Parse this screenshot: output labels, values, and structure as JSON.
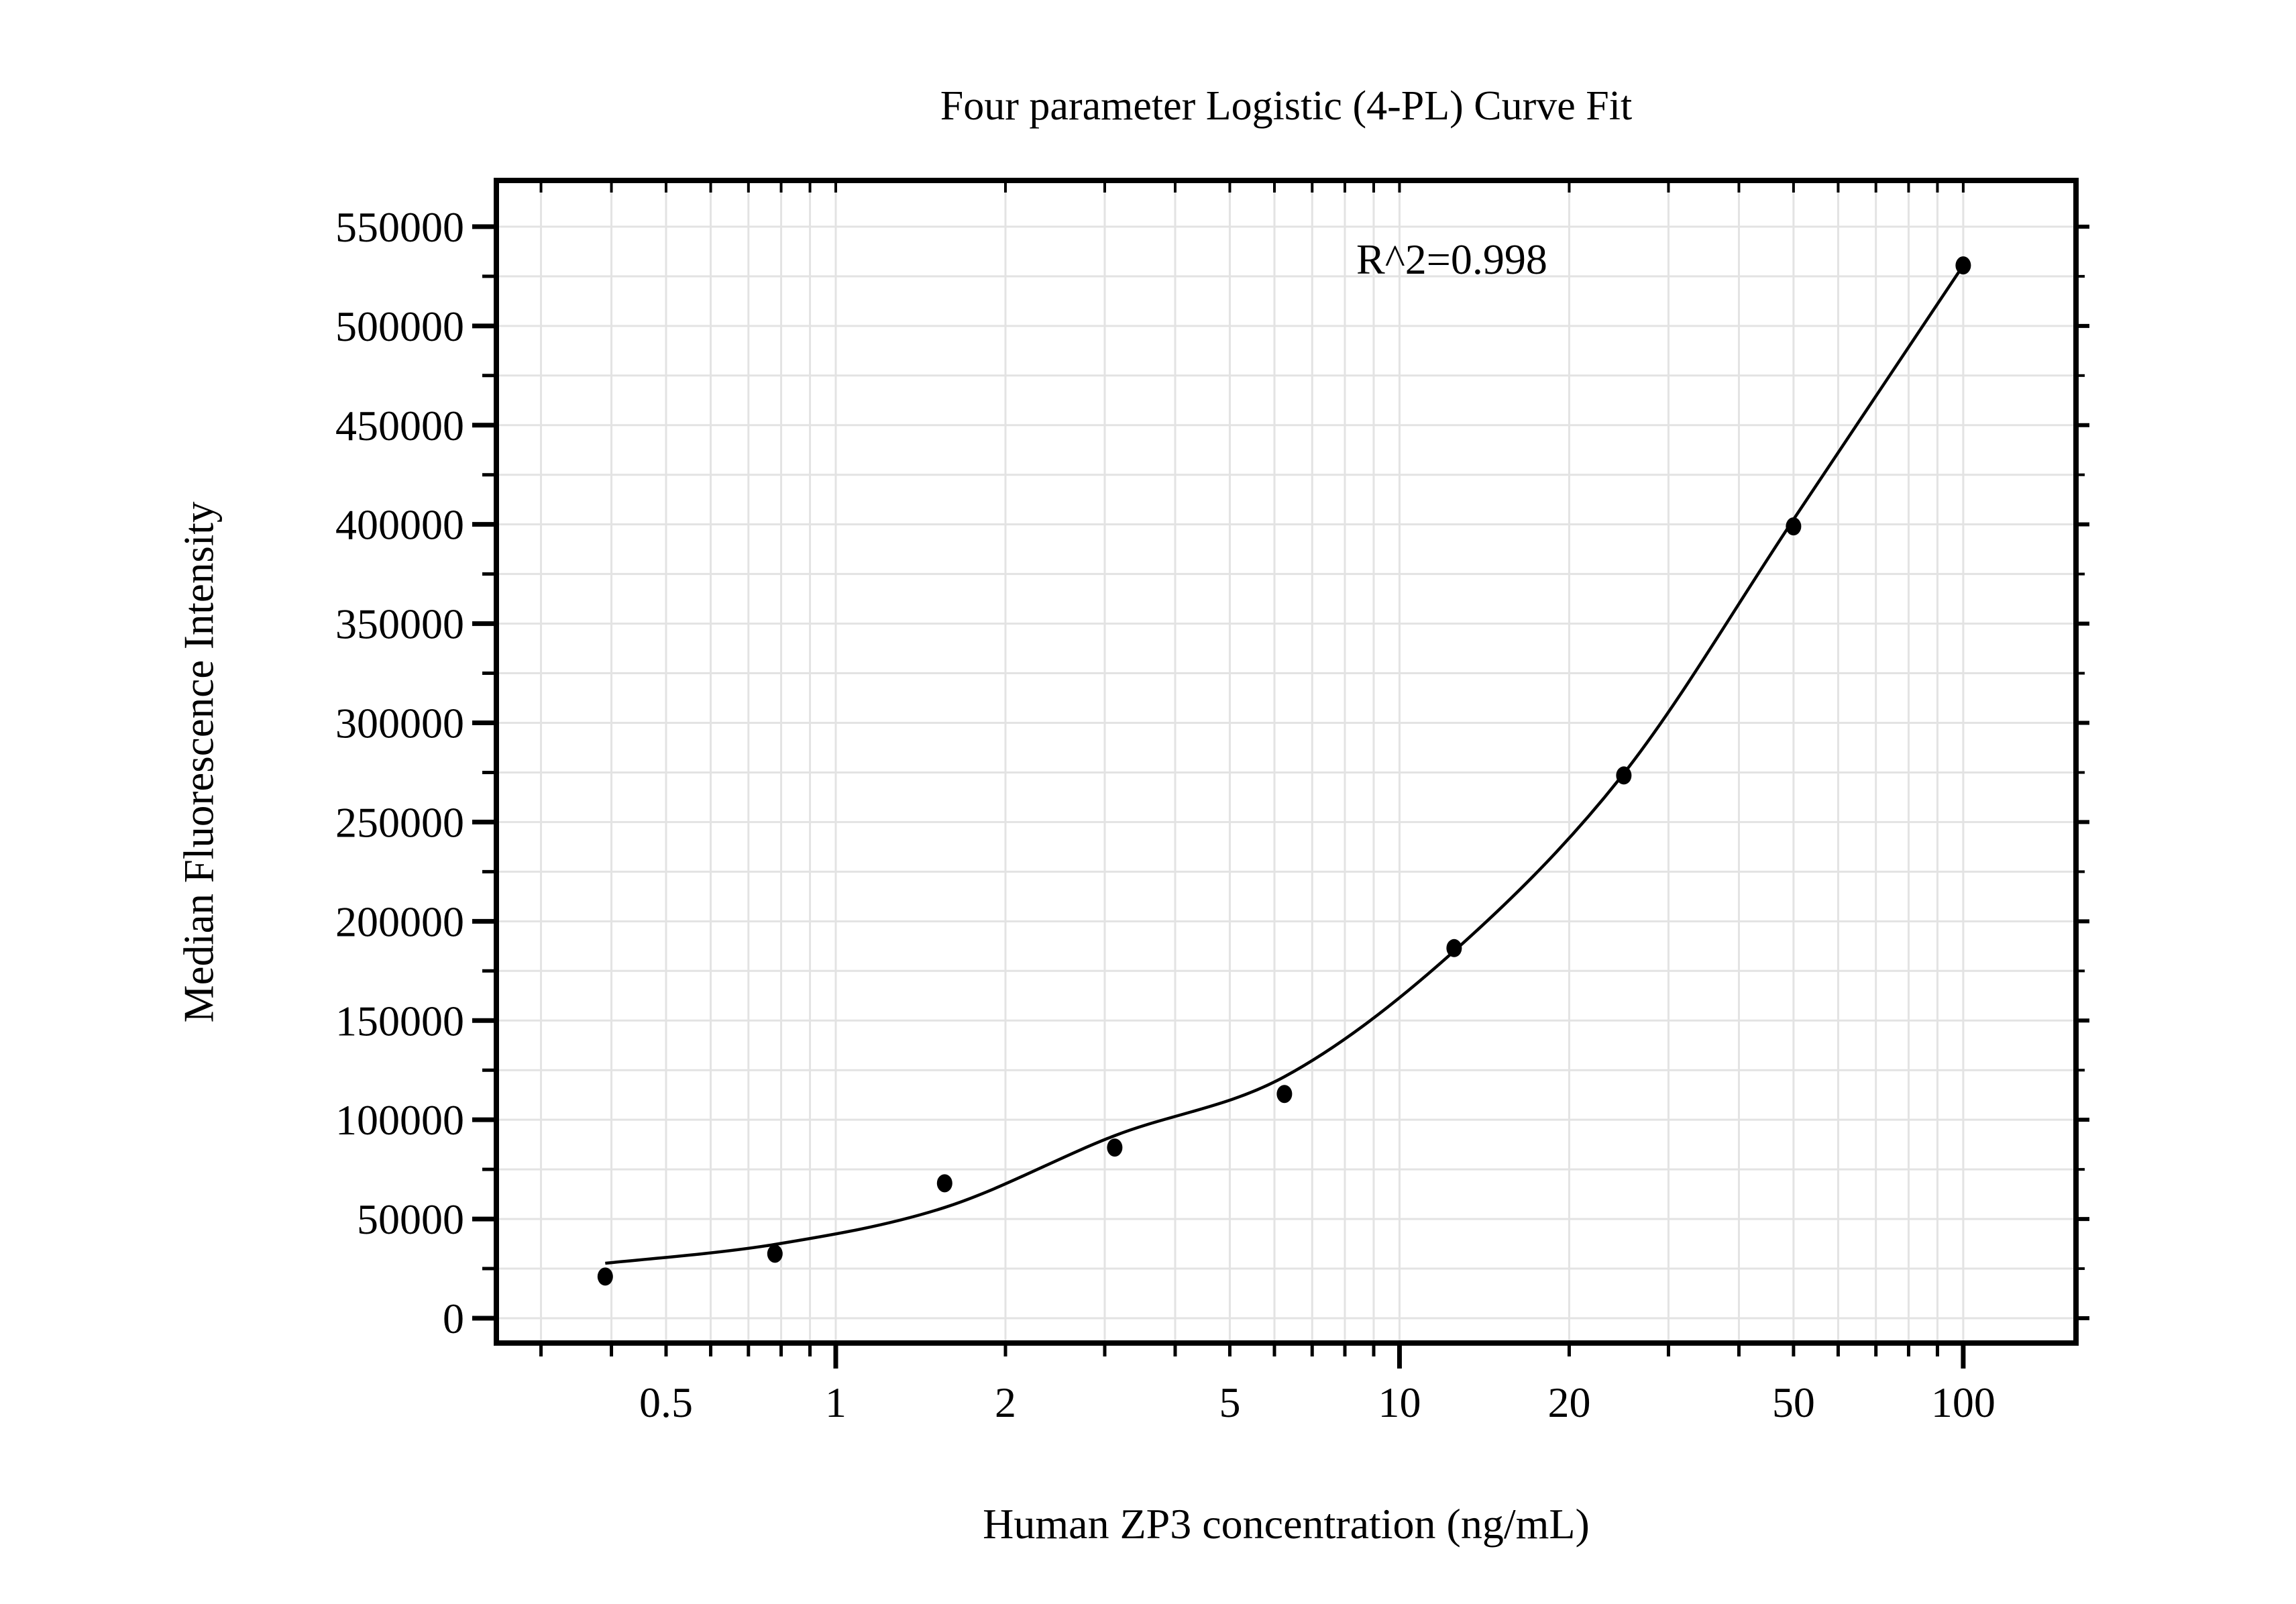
{
  "chart_data": {
    "type": "scatter",
    "title": "Four parameter Logistic (4-PL) Curve Fit",
    "xlabel": "Human ZP3 concentration (ng/mL)",
    "ylabel": "Median Fluorescence Intensity",
    "annotation": "R^2=0.998",
    "x_scale": "log",
    "grid": "on",
    "legend": "none",
    "x_axis": {
      "min": 0.25,
      "max": 158.5,
      "labeled_ticks": [
        0.5,
        1,
        2,
        5,
        10,
        20,
        50,
        100
      ],
      "tick_labels": [
        "0.5",
        "1",
        "2",
        "5",
        "10",
        "20",
        "50",
        "100"
      ],
      "decade_ticks": [
        1,
        10,
        100
      ],
      "minor_ticks": [
        0.3,
        0.4,
        0.5,
        0.6,
        0.7,
        0.8,
        0.9,
        2,
        3,
        4,
        5,
        6,
        7,
        8,
        9,
        20,
        30,
        40,
        50,
        60,
        70,
        80,
        90
      ]
    },
    "y_axis": {
      "min": -12500,
      "max": 573300,
      "major_ticks": [
        0,
        50000,
        100000,
        150000,
        200000,
        250000,
        300000,
        350000,
        400000,
        450000,
        500000,
        550000
      ],
      "tick_labels": [
        "0",
        "50000",
        "100000",
        "150000",
        "200000",
        "250000",
        "300000",
        "350000",
        "400000",
        "450000",
        "500000",
        "550000"
      ],
      "minor_ticks": [
        25000,
        75000,
        125000,
        175000,
        225000,
        275000,
        325000,
        375000,
        425000,
        475000,
        525000
      ]
    },
    "series": [
      {
        "name": "standard points",
        "x": [
          0.39,
          0.78,
          1.56,
          3.125,
          6.25,
          12.5,
          25,
          50,
          100
        ],
        "y": [
          21000,
          32500,
          68000,
          86000,
          113000,
          186500,
          273500,
          399000,
          530500
        ]
      }
    ],
    "fit_curve": {
      "name": "4-PL fit line",
      "x": [
        0.39,
        0.78,
        1.56,
        3.125,
        6.25,
        12.5,
        25,
        50,
        100
      ],
      "y": [
        27700,
        37200,
        55800,
        92000,
        121700,
        185000,
        274500,
        402500,
        530500
      ]
    },
    "colors": {
      "background": "#ffffff",
      "frame": "#000000",
      "grid": "#e3e3e3",
      "curve": "#000000",
      "points": "#000000",
      "text": "#000000"
    }
  }
}
